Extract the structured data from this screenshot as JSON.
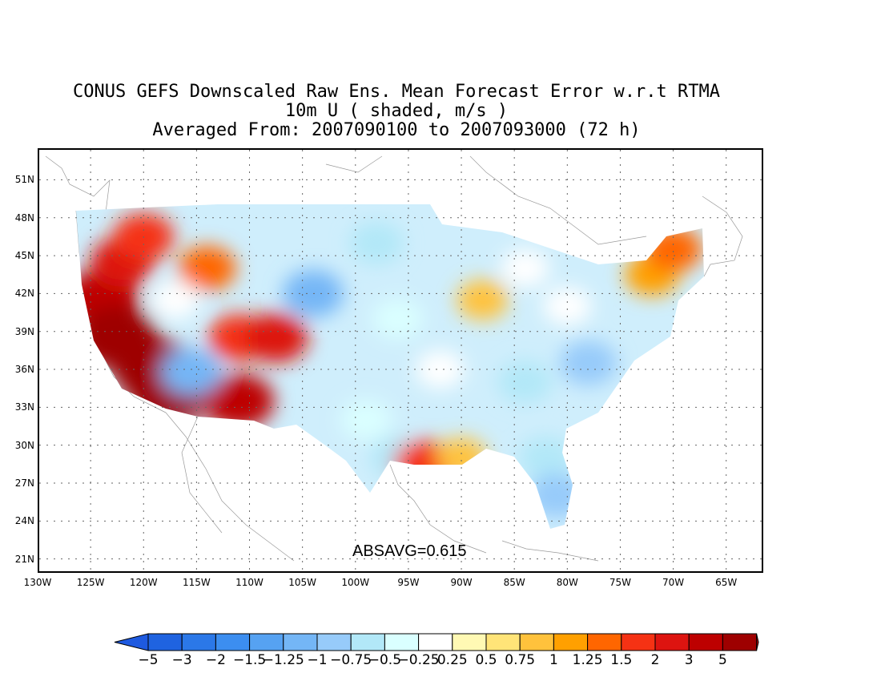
{
  "title": {
    "line1": "CONUS GEFS Downscaled Raw Ens. Mean Forecast Error w.r.t RTMA",
    "line2": "10m U ( shaded, m/s )",
    "line3": "Averaged From: 2007090100 to 2007093000 (72 h)"
  },
  "axes": {
    "lat_labels": [
      "51N",
      "48N",
      "45N",
      "42N",
      "39N",
      "36N",
      "33N",
      "30N",
      "27N",
      "24N",
      "21N"
    ],
    "lat_values": [
      51,
      48,
      45,
      42,
      39,
      36,
      33,
      30,
      27,
      24,
      21
    ],
    "lon_labels": [
      "130W",
      "125W",
      "120W",
      "115W",
      "110W",
      "105W",
      "100W",
      "95W",
      "90W",
      "85W",
      "80W",
      "75W",
      "70W",
      "65W"
    ],
    "lon_values": [
      -130,
      -125,
      -120,
      -115,
      -110,
      -105,
      -100,
      -95,
      -90,
      -85,
      -80,
      -75,
      -70,
      -65
    ],
    "lon_range": [
      -130,
      -61.5
    ],
    "lat_range": [
      19.9,
      53.5
    ],
    "grid": "dotted"
  },
  "statistic": {
    "text": "ABSAVG=0.615"
  },
  "colorbar": {
    "labels": [
      "−5",
      "−3",
      "−2",
      "−1.5",
      "−1.25",
      "−1",
      "−0.75",
      "−0.5",
      "−0.25",
      "0.25",
      "0.5",
      "0.75",
      "1",
      "1.25",
      "1.5",
      "2",
      "3",
      "5"
    ],
    "colors": [
      "#1f63e0",
      "#2b78e8",
      "#3c8ef0",
      "#56a2f2",
      "#74b6f6",
      "#97cbfa",
      "#b2e8f8",
      "#daffff",
      "#ffffff",
      "#fff9b4",
      "#ffe478",
      "#ffc23c",
      "#ffa000",
      "#ff6600",
      "#f53214",
      "#dd1410",
      "#bd0000",
      "#9e0000"
    ],
    "under_color": "#1e5ae0",
    "over_color": "#a80000"
  },
  "chart_data": {
    "type": "heatmap",
    "variable": "10m U",
    "units": "m/s",
    "levels": [
      -5,
      -3,
      -2,
      -1.5,
      -1.25,
      -1,
      -0.75,
      -0.5,
      -0.25,
      0.25,
      0.5,
      0.75,
      1,
      1.25,
      1.5,
      2,
      3,
      5
    ],
    "absavg": 0.615,
    "regions": [
      {
        "lon": -124,
        "lat": 41.5,
        "value": 2.5
      },
      {
        "lon": -122.5,
        "lat": 38.5,
        "value": 3
      },
      {
        "lon": -119,
        "lat": 36,
        "value": 3
      },
      {
        "lon": -117.5,
        "lat": 34.2,
        "value": 3
      },
      {
        "lon": -122,
        "lat": 44.5,
        "value": 1.5
      },
      {
        "lon": -120,
        "lat": 46.5,
        "value": 1.25
      },
      {
        "lon": -114,
        "lat": 44,
        "value": 1
      },
      {
        "lon": -111,
        "lat": 38.5,
        "value": 1.25
      },
      {
        "lon": -107.5,
        "lat": 38.5,
        "value": 1.5
      },
      {
        "lon": -111,
        "lat": 33.5,
        "value": 2
      },
      {
        "lon": -115.5,
        "lat": 35.8,
        "value": -1.25
      },
      {
        "lon": -117,
        "lat": 41.5,
        "value": -0.25
      },
      {
        "lon": -104,
        "lat": 42,
        "value": -1.25
      },
      {
        "lon": -98,
        "lat": 46,
        "value": -0.75
      },
      {
        "lon": -96,
        "lat": 40,
        "value": -0.5
      },
      {
        "lon": -99,
        "lat": 32,
        "value": -0.5
      },
      {
        "lon": -96,
        "lat": 29,
        "value": -0.75
      },
      {
        "lon": -92,
        "lat": 36,
        "value": -0.25
      },
      {
        "lon": -84,
        "lat": 35,
        "value": -0.75
      },
      {
        "lon": -78,
        "lat": 36.5,
        "value": -1
      },
      {
        "lon": -82,
        "lat": 29,
        "value": -0.75
      },
      {
        "lon": -81,
        "lat": 26,
        "value": -1
      },
      {
        "lon": -88,
        "lat": 41.5,
        "value": 0.5
      },
      {
        "lon": -84,
        "lat": 44,
        "value": 0.25
      },
      {
        "lon": -80,
        "lat": 41,
        "value": 0.25
      },
      {
        "lon": -72,
        "lat": 43.5,
        "value": 0.75
      },
      {
        "lon": -70,
        "lat": 45.5,
        "value": 1
      },
      {
        "lon": -93.5,
        "lat": 28.5,
        "value": 1.25
      },
      {
        "lon": -90,
        "lat": 29,
        "value": 0.5
      }
    ]
  }
}
